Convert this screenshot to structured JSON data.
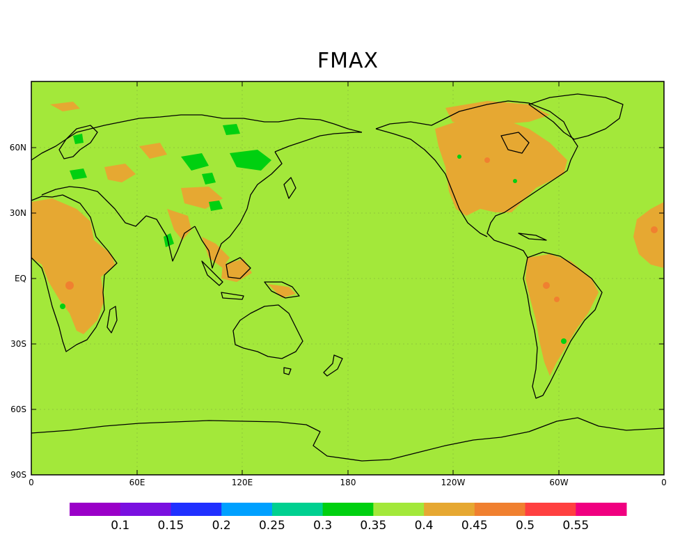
{
  "title": "FMAX",
  "colors": {
    "background": "#a3e83a",
    "orange": "#e6a832",
    "green": "#00d010",
    "coast": "#000000",
    "grid": "#8fc83a"
  },
  "axes": {
    "x_ticks": [
      "0",
      "60E",
      "120E",
      "180",
      "120W",
      "60W",
      "0"
    ],
    "y_ticks": [
      "60N",
      "30N",
      "EQ",
      "30S",
      "60S",
      "90S"
    ]
  },
  "colorbar": {
    "colors": [
      "#9a00c8",
      "#7a10e0",
      "#2030ff",
      "#00a0ff",
      "#00d090",
      "#00d010",
      "#a3e83a",
      "#e6a832",
      "#f08030",
      "#ff4040",
      "#f00080"
    ],
    "labels": [
      "0.1",
      "0.15",
      "0.2",
      "0.25",
      "0.3",
      "0.35",
      "0.4",
      "0.45",
      "0.5",
      "0.55"
    ]
  }
}
